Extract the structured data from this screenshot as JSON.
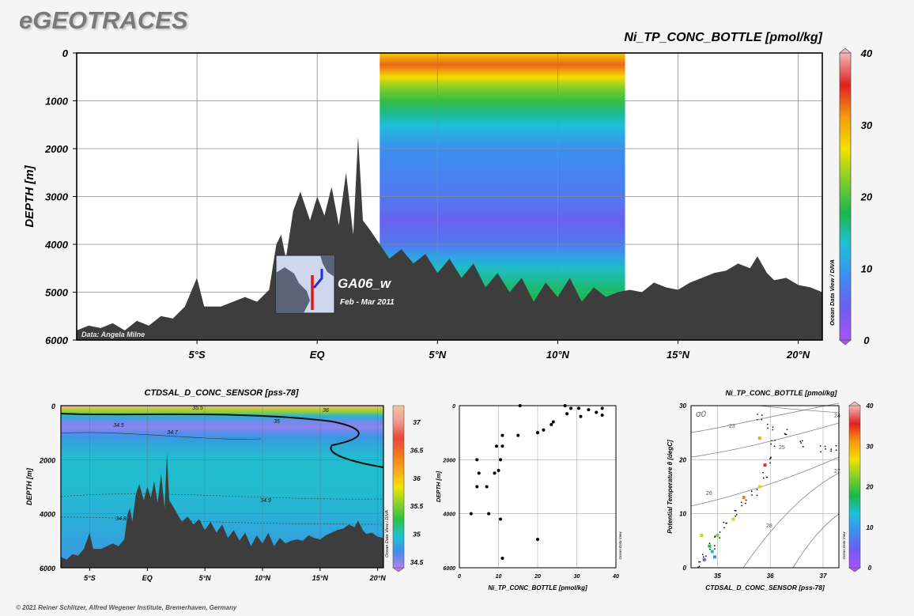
{
  "header": {
    "logo": "eGEOTRACES",
    "copyright": "© 2021 Reiner Schlitzer, Alfred Wegener Institute, Bremerhaven, Germany"
  },
  "colors": {
    "land": "#3d3d3d",
    "frame": "#000000",
    "grid": "#8a8a8a",
    "background": "#f5f5f5",
    "colorbar_stops": [
      "#a855f7",
      "#6d5cf0",
      "#3b8ef0",
      "#1fc0d8",
      "#1bb64a",
      "#7fcf2a",
      "#f4e000",
      "#f59a10",
      "#e02020",
      "#f4b8b8"
    ]
  },
  "chart_data": [
    {
      "id": "main-section",
      "type": "heatmap",
      "title": "Ni_TP_CONC_BOTTLE [pmol/kg]",
      "ylabel": "DEPTH [m]",
      "xlim": [
        -10,
        21
      ],
      "ylim": [
        6000,
        0
      ],
      "x_ticks": [
        -5,
        0,
        5,
        10,
        15,
        20
      ],
      "x_tick_labels": [
        "5°S",
        "EQ",
        "5°N",
        "10°N",
        "15°N",
        "20°N"
      ],
      "y_ticks": [
        0,
        1000,
        2000,
        3000,
        4000,
        5000,
        6000
      ],
      "y_tick_labels": [
        "0",
        "1000",
        "2000",
        "3000",
        "4000",
        "5000",
        "6000"
      ],
      "data_x_range": [
        2.6,
        12.8
      ],
      "colorbar": {
        "range": [
          0,
          40
        ],
        "ticks": [
          "0",
          "10",
          "20",
          "30",
          "40"
        ]
      },
      "value_profile": [
        {
          "depth": 0,
          "value": 28
        },
        {
          "depth": 250,
          "value": 33
        },
        {
          "depth": 500,
          "value": 27
        },
        {
          "depth": 800,
          "value": 21
        },
        {
          "depth": 1000,
          "value": 19
        },
        {
          "depth": 1300,
          "value": 15
        },
        {
          "depth": 2000,
          "value": 9
        },
        {
          "depth": 3000,
          "value": 7
        },
        {
          "depth": 3500,
          "value": 5
        },
        {
          "depth": 4000,
          "value": 7
        },
        {
          "depth": 4500,
          "value": 14
        },
        {
          "depth": 5000,
          "value": 17
        },
        {
          "depth": 6000,
          "value": 20
        }
      ],
      "bathymetry": [
        [
          -10,
          5800
        ],
        [
          -9.5,
          5700
        ],
        [
          -9,
          5750
        ],
        [
          -8.5,
          5650
        ],
        [
          -8,
          5800
        ],
        [
          -7.5,
          5600
        ],
        [
          -7,
          5700
        ],
        [
          -6.5,
          5500
        ],
        [
          -6,
          5550
        ],
        [
          -5.5,
          5300
        ],
        [
          -5,
          4700
        ],
        [
          -4.7,
          5300
        ],
        [
          -4,
          5300
        ],
        [
          -3,
          5100
        ],
        [
          -2.5,
          5200
        ],
        [
          -2,
          4950
        ],
        [
          -1.7,
          4000
        ],
        [
          -1.5,
          3800
        ],
        [
          -1.3,
          4300
        ],
        [
          -1.0,
          3300
        ],
        [
          -0.7,
          2900
        ],
        [
          -0.3,
          3500
        ],
        [
          0.0,
          3000
        ],
        [
          0.3,
          3400
        ],
        [
          0.6,
          2800
        ],
        [
          0.9,
          3600
        ],
        [
          1.2,
          2500
        ],
        [
          1.5,
          3800
        ],
        [
          1.7,
          1750
        ],
        [
          1.9,
          3500
        ],
        [
          2.2,
          3700
        ],
        [
          2.6,
          4000
        ],
        [
          3.0,
          4300
        ],
        [
          3.5,
          4100
        ],
        [
          4.0,
          4400
        ],
        [
          4.5,
          4200
        ],
        [
          5.0,
          4600
        ],
        [
          5.5,
          4300
        ],
        [
          6.0,
          4700
        ],
        [
          6.5,
          4400
        ],
        [
          7.0,
          4900
        ],
        [
          7.5,
          4600
        ],
        [
          8.0,
          5000
        ],
        [
          8.5,
          4700
        ],
        [
          9.0,
          5200
        ],
        [
          9.5,
          4800
        ],
        [
          10.0,
          5100
        ],
        [
          10.5,
          4700
        ],
        [
          11.0,
          5200
        ],
        [
          11.5,
          4900
        ],
        [
          12.0,
          5100
        ],
        [
          12.5,
          5000
        ],
        [
          13.0,
          4950
        ],
        [
          13.5,
          5000
        ],
        [
          14.0,
          4800
        ],
        [
          14.5,
          4900
        ],
        [
          15.0,
          4950
        ],
        [
          15.5,
          4800
        ],
        [
          16.0,
          4700
        ],
        [
          16.5,
          4600
        ],
        [
          17.0,
          4550
        ],
        [
          17.5,
          4400
        ],
        [
          18.0,
          4500
        ],
        [
          18.3,
          4250
        ],
        [
          18.7,
          4600
        ],
        [
          19.0,
          4750
        ],
        [
          19.5,
          4700
        ],
        [
          20.0,
          4850
        ],
        [
          20.5,
          4900
        ],
        [
          21,
          5000
        ]
      ],
      "annotations": {
        "data_credit": "Data: Angela Milne",
        "cruise": "GA06_w",
        "dates": "Feb - Mar 2011",
        "side_label": "Ocean Data View / DIVA"
      }
    },
    {
      "id": "salinity-section",
      "type": "heatmap",
      "title": "CTDSAL_D_CONC_SENSOR [pss-78]",
      "ylabel": "DEPTH [m]",
      "xlim": [
        -7.5,
        20.5
      ],
      "ylim": [
        6000,
        0
      ],
      "x_ticks": [
        -5,
        0,
        5,
        10,
        15,
        20
      ],
      "x_tick_labels": [
        "5°S",
        "EQ",
        "5°N",
        "10°N",
        "15°N",
        "20°N"
      ],
      "y_ticks": [
        0,
        2000,
        4000,
        6000
      ],
      "y_tick_labels": [
        "0",
        "2000",
        "4000",
        "6000"
      ],
      "colorbar": {
        "range": [
          34.4,
          37.3
        ],
        "ticks": [
          "34.5",
          "35",
          "35.5",
          "36",
          "36.5",
          "37"
        ]
      },
      "contour_labels": [
        "34.5",
        "34.7",
        "35",
        "35.5",
        "36",
        "34.9",
        "34.8"
      ],
      "value_profile": [
        {
          "depth": 0,
          "value": 37.2
        },
        {
          "depth": 100,
          "value": 36.2
        },
        {
          "depth": 250,
          "value": 35.3
        },
        {
          "depth": 500,
          "value": 34.6
        },
        {
          "depth": 800,
          "value": 34.5
        },
        {
          "depth": 1300,
          "value": 34.8
        },
        {
          "depth": 2000,
          "value": 34.95
        },
        {
          "depth": 3000,
          "value": 34.95
        },
        {
          "depth": 4000,
          "value": 34.88
        },
        {
          "depth": 5000,
          "value": 34.8
        },
        {
          "depth": 6000,
          "value": 34.75
        }
      ],
      "side_label": "Ocean Data View / DIVA"
    },
    {
      "id": "profile",
      "type": "scatter",
      "xlabel": "Ni_TP_CONC_BOTTLE [pmol/kg]",
      "ylabel": "DEPTH [m]",
      "xlim": [
        0,
        40
      ],
      "ylim": [
        6000,
        0
      ],
      "x_ticks": [
        "0",
        "10",
        "20",
        "30",
        "40"
      ],
      "y_ticks": [
        "0",
        "2000",
        "4000",
        "6000"
      ],
      "points": [
        {
          "x": 15.5,
          "y": 0
        },
        {
          "x": 27,
          "y": 0
        },
        {
          "x": 28.5,
          "y": 100
        },
        {
          "x": 30.5,
          "y": 100
        },
        {
          "x": 33,
          "y": 150
        },
        {
          "x": 35,
          "y": 250
        },
        {
          "x": 36.5,
          "y": 100
        },
        {
          "x": 36.5,
          "y": 350
        },
        {
          "x": 31,
          "y": 400
        },
        {
          "x": 27.5,
          "y": 300
        },
        {
          "x": 24,
          "y": 600
        },
        {
          "x": 23.5,
          "y": 700
        },
        {
          "x": 21.5,
          "y": 900
        },
        {
          "x": 20,
          "y": 1000
        },
        {
          "x": 15,
          "y": 1100
        },
        {
          "x": 11,
          "y": 1100
        },
        {
          "x": 9.5,
          "y": 1500
        },
        {
          "x": 11,
          "y": 1500
        },
        {
          "x": 10.5,
          "y": 2000
        },
        {
          "x": 4.5,
          "y": 2000
        },
        {
          "x": 10,
          "y": 2400
        },
        {
          "x": 9,
          "y": 2500
        },
        {
          "x": 5,
          "y": 2500
        },
        {
          "x": 4.5,
          "y": 3000
        },
        {
          "x": 7,
          "y": 3000
        },
        {
          "x": 3,
          "y": 4000
        },
        {
          "x": 7.5,
          "y": 4000
        },
        {
          "x": 10.5,
          "y": 4200
        },
        {
          "x": 20,
          "y": 4950
        },
        {
          "x": 11,
          "y": 5650
        }
      ],
      "side_label": "Ocean Data View"
    },
    {
      "id": "theta-s",
      "type": "scatter",
      "title": "Ni_TP_CONC_BOTTLE [pmol/kg]",
      "xlabel": "CTDSAL_D_CONC_SENSOR [pss-78]",
      "ylabel": "Potential Temperature θ [degC]",
      "xlim": [
        34.5,
        37.3
      ],
      "ylim": [
        0,
        30
      ],
      "x_ticks": [
        "35",
        "36",
        "37"
      ],
      "y_ticks": [
        "0",
        "10",
        "20",
        "30"
      ],
      "sigma_label": "σ0",
      "isopycnal_labels": [
        "23",
        "24",
        "25",
        "26",
        "27",
        "28"
      ],
      "colorbar": {
        "range": [
          0,
          40
        ],
        "ticks": [
          "0",
          "10",
          "20",
          "30",
          "40"
        ]
      },
      "side_label": "Ocean Data View"
    }
  ]
}
